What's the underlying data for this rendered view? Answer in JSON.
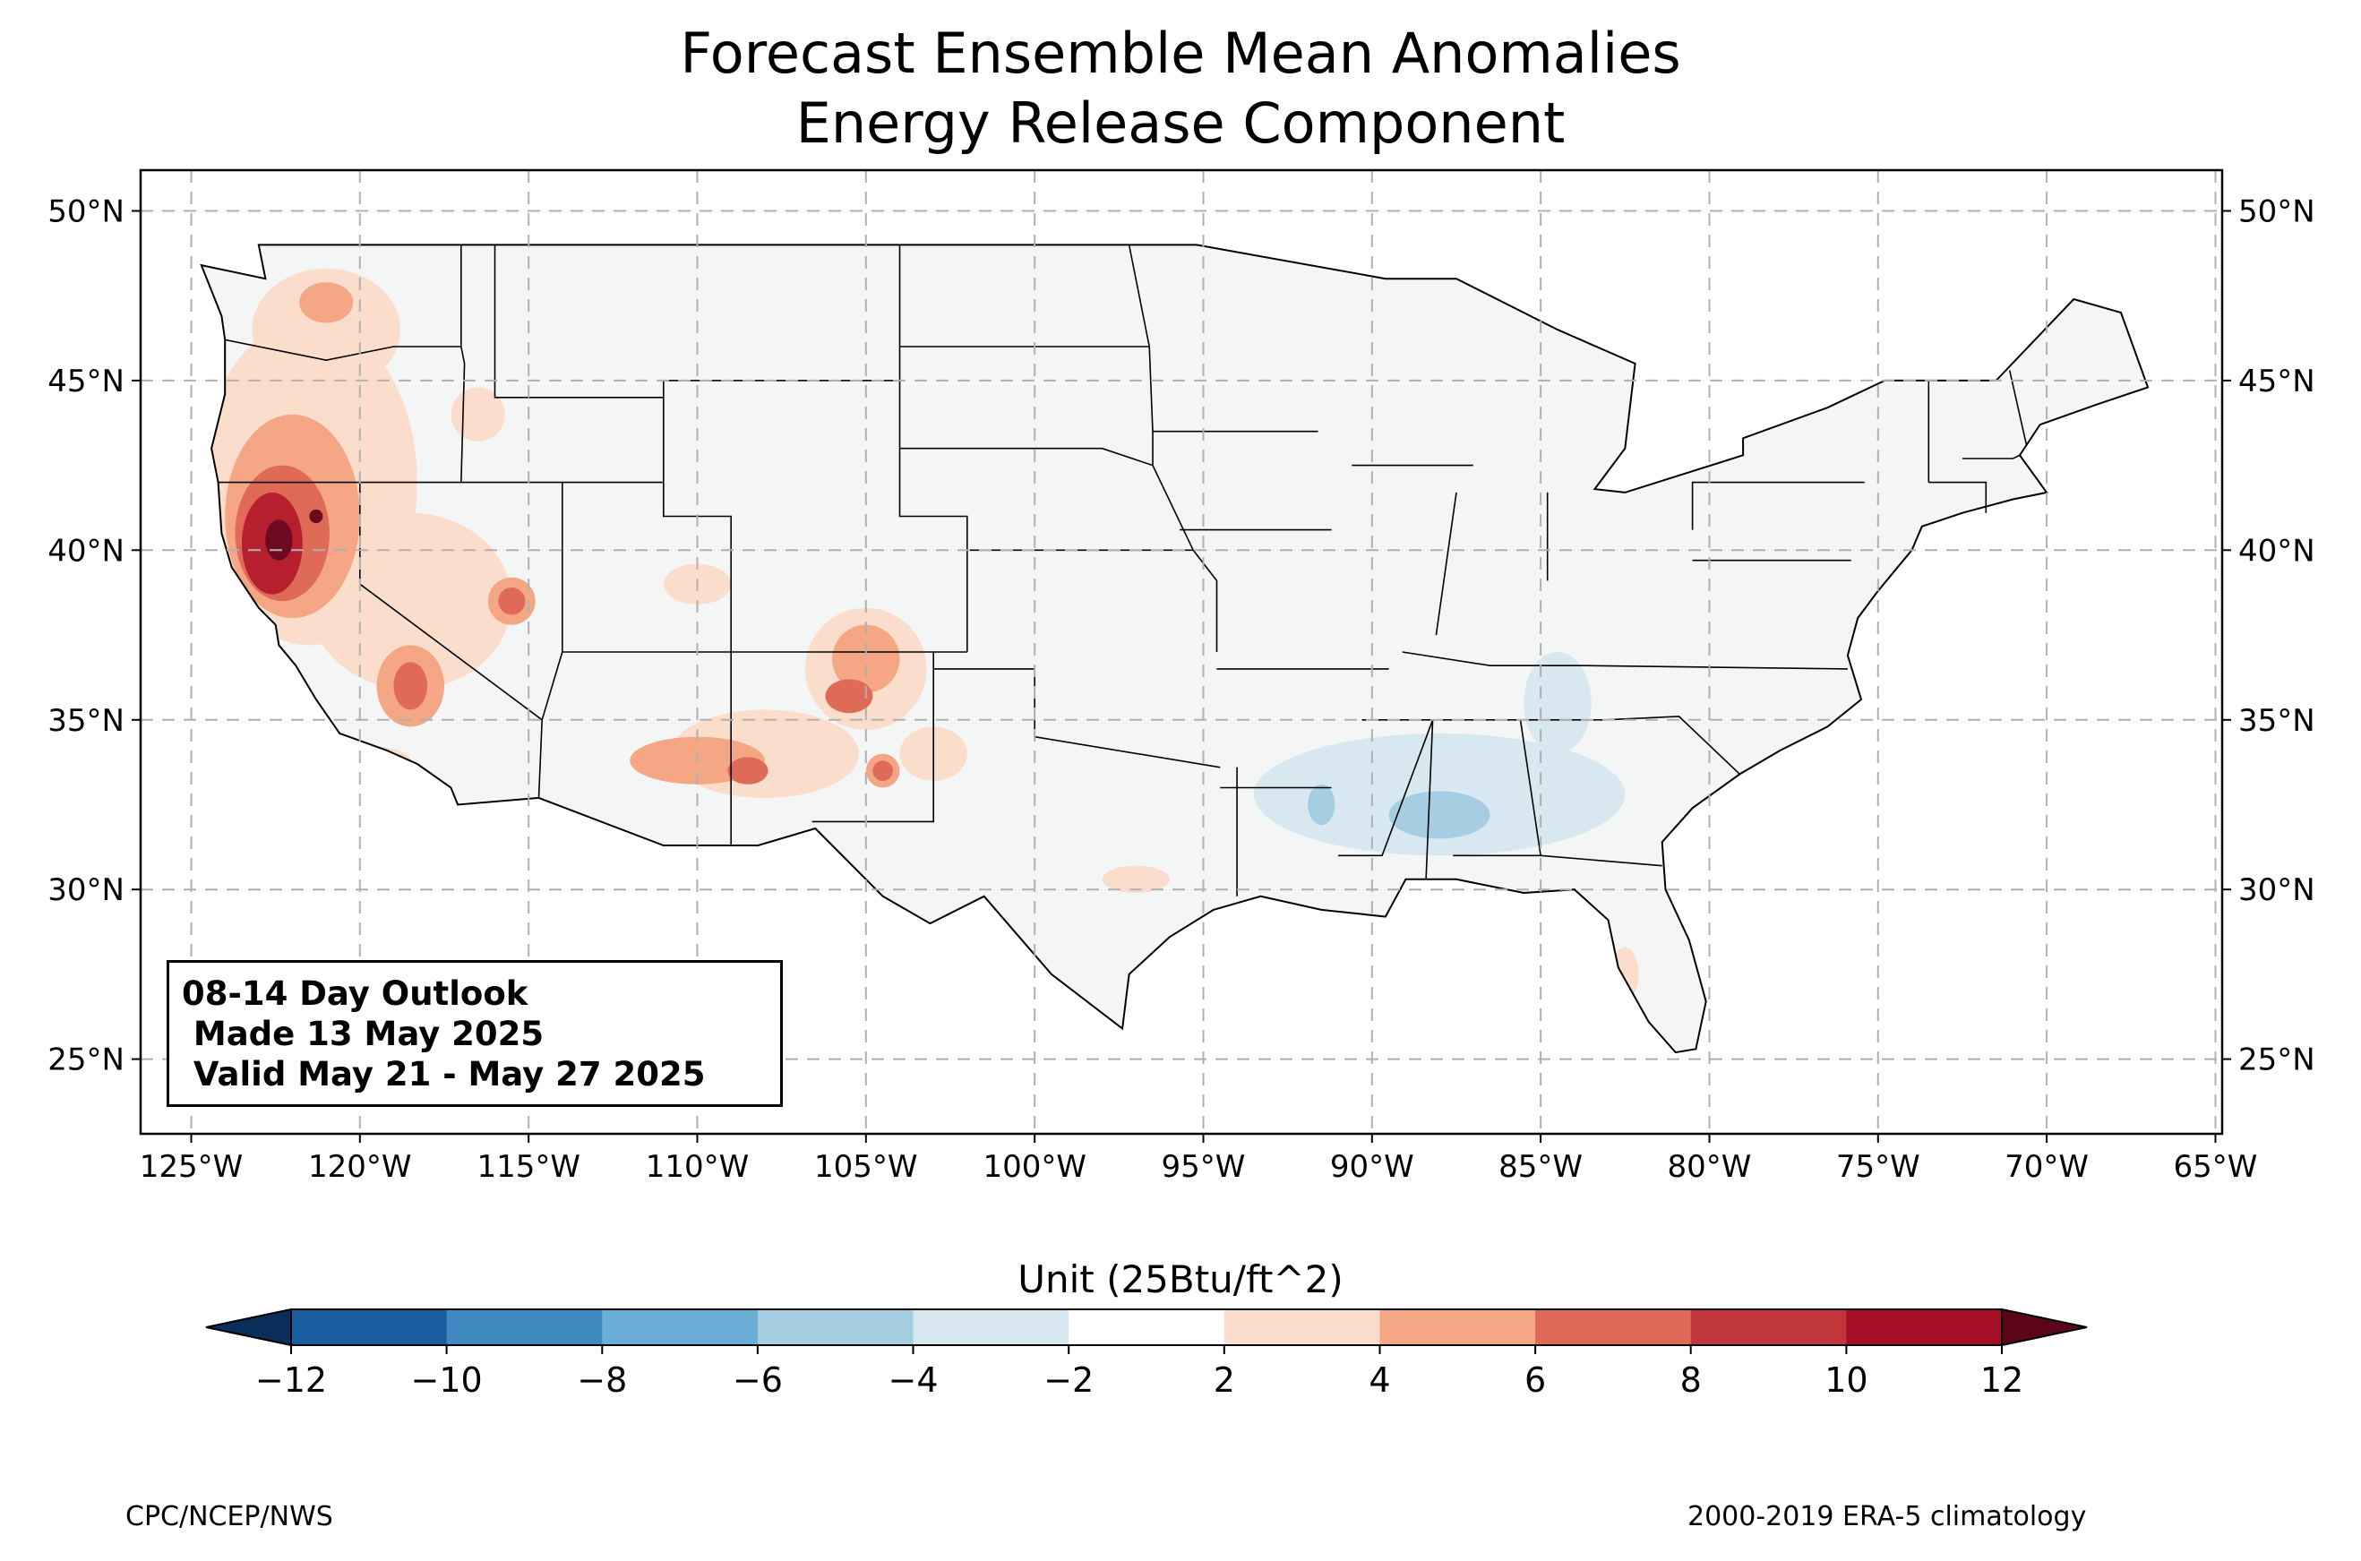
{
  "title": {
    "line1": "Forecast Ensemble Mean Anomalies",
    "line2": "Energy Release Component"
  },
  "map": {
    "lon_range": [
      -126.5,
      -64.8
    ],
    "lat_range": [
      22.8,
      51.2
    ],
    "lon_ticks": [
      {
        "value": -125,
        "label": "125°W"
      },
      {
        "value": -120,
        "label": "120°W"
      },
      {
        "value": -115,
        "label": "115°W"
      },
      {
        "value": -110,
        "label": "110°W"
      },
      {
        "value": -105,
        "label": "105°W"
      },
      {
        "value": -100,
        "label": "100°W"
      },
      {
        "value": -95,
        "label": "95°W"
      },
      {
        "value": -90,
        "label": "90°W"
      },
      {
        "value": -85,
        "label": "85°W"
      },
      {
        "value": -80,
        "label": "80°W"
      },
      {
        "value": -75,
        "label": "75°W"
      },
      {
        "value": -70,
        "label": "70°W"
      },
      {
        "value": -65,
        "label": "65°W"
      }
    ],
    "lat_ticks": [
      {
        "value": 25,
        "label": "25°N"
      },
      {
        "value": 30,
        "label": "30°N"
      },
      {
        "value": 35,
        "label": "35°N"
      },
      {
        "value": 40,
        "label": "40°N"
      },
      {
        "value": 45,
        "label": "45°N"
      },
      {
        "value": 50,
        "label": "50°N"
      }
    ],
    "land_color": "#f4f6f6",
    "anomaly_regions": [
      {
        "color": "#fbddcc",
        "blobs": [
          [
            -121.5,
            42.0,
            3.2,
            4.8
          ],
          [
            -118.5,
            38.5,
            3.0,
            2.6
          ],
          [
            -121.0,
            46.5,
            2.2,
            1.8
          ],
          [
            -108.0,
            34.0,
            2.8,
            1.3
          ],
          [
            -105.0,
            36.5,
            1.8,
            1.8
          ],
          [
            -103.0,
            34.0,
            1.0,
            0.8
          ],
          [
            -97.0,
            30.3,
            1.0,
            0.4
          ],
          [
            -82.5,
            27.5,
            0.4,
            0.8
          ],
          [
            -110.0,
            39.0,
            1.0,
            0.6
          ],
          [
            -116.5,
            44.0,
            0.8,
            0.8
          ],
          [
            -119.5,
            33.8,
            1.0,
            0.4
          ]
        ]
      },
      {
        "color": "#f4a685",
        "blobs": [
          [
            -122.0,
            41.0,
            2.0,
            3.0
          ],
          [
            -118.5,
            36.0,
            1.0,
            1.2
          ],
          [
            -110.0,
            33.8,
            2.0,
            0.7
          ],
          [
            -105.0,
            36.8,
            1.0,
            1.0
          ],
          [
            -121.0,
            47.3,
            0.8,
            0.6
          ],
          [
            -115.5,
            38.5,
            0.7,
            0.7
          ],
          [
            -104.5,
            33.5,
            0.5,
            0.5
          ]
        ]
      },
      {
        "color": "#df6a57",
        "blobs": [
          [
            -122.3,
            40.5,
            1.4,
            2.0
          ],
          [
            -118.5,
            36.0,
            0.5,
            0.7
          ],
          [
            -105.5,
            35.7,
            0.7,
            0.5
          ],
          [
            -108.5,
            33.5,
            0.6,
            0.4
          ],
          [
            -115.5,
            38.5,
            0.4,
            0.4
          ],
          [
            -104.5,
            33.5,
            0.3,
            0.3
          ]
        ]
      },
      {
        "color": "#b51f2e",
        "blobs": [
          [
            -122.6,
            40.2,
            0.9,
            1.5
          ]
        ]
      },
      {
        "color": "#6d0a1f",
        "blobs": [
          [
            -122.4,
            40.3,
            0.4,
            0.6
          ],
          [
            -121.3,
            41.0,
            0.2,
            0.2
          ]
        ]
      },
      {
        "color": "#d7e8f1",
        "blobs": [
          [
            -88.0,
            32.8,
            5.5,
            1.8
          ],
          [
            -84.5,
            35.5,
            1.0,
            1.5
          ]
        ]
      },
      {
        "color": "#a6cee2",
        "blobs": [
          [
            -88.0,
            32.2,
            1.5,
            0.7
          ],
          [
            -91.5,
            32.5,
            0.4,
            0.6
          ]
        ]
      }
    ]
  },
  "outlook": {
    "text": "08-14 Day Outlook\n Made 13 May 2025\n Valid May 21 - May 27 2025"
  },
  "colorbar": {
    "title": "Unit (25Btu/ft^2)",
    "ticks": [
      "−12",
      "−10",
      "−8",
      "−6",
      "−4",
      "−2",
      "2",
      "4",
      "6",
      "8",
      "10",
      "12"
    ],
    "colors": [
      "#1a5d9e",
      "#3f88c0",
      "#6aadd5",
      "#a6cee2",
      "#d7e8f1",
      "#ffffff",
      "#fbddcc",
      "#f4a685",
      "#df6a57",
      "#c0353a",
      "#a50f25"
    ],
    "under_color": "#0a2d5a",
    "over_color": "#5b0618"
  },
  "credits": {
    "left": "CPC/NCEP/NWS",
    "right": "2000-2019 ERA-5 climatology"
  }
}
